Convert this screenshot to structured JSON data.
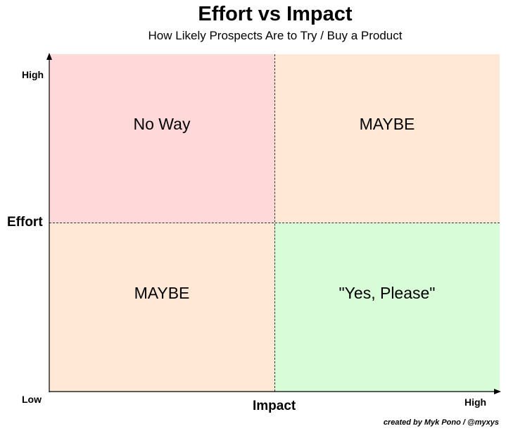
{
  "title": "Effort vs Impact",
  "subtitle": "How Likely Prospects Are to Try / Buy a Product",
  "axes": {
    "y_title": "Effort",
    "x_title": "Impact",
    "y_high": "High",
    "y_low": "Low",
    "x_high": "High"
  },
  "quadrants": {
    "top_left": {
      "label": "No Way",
      "color": "#ffd9d9"
    },
    "top_right": {
      "label": "MAYBE",
      "color": "#ffe8d6"
    },
    "bottom_left": {
      "label": "MAYBE",
      "color": "#ffe8d6"
    },
    "bottom_right": {
      "label": "\"Yes, Please\"",
      "color": "#d8fcd8"
    }
  },
  "credit": "created by Myk Pono / @myxys"
}
